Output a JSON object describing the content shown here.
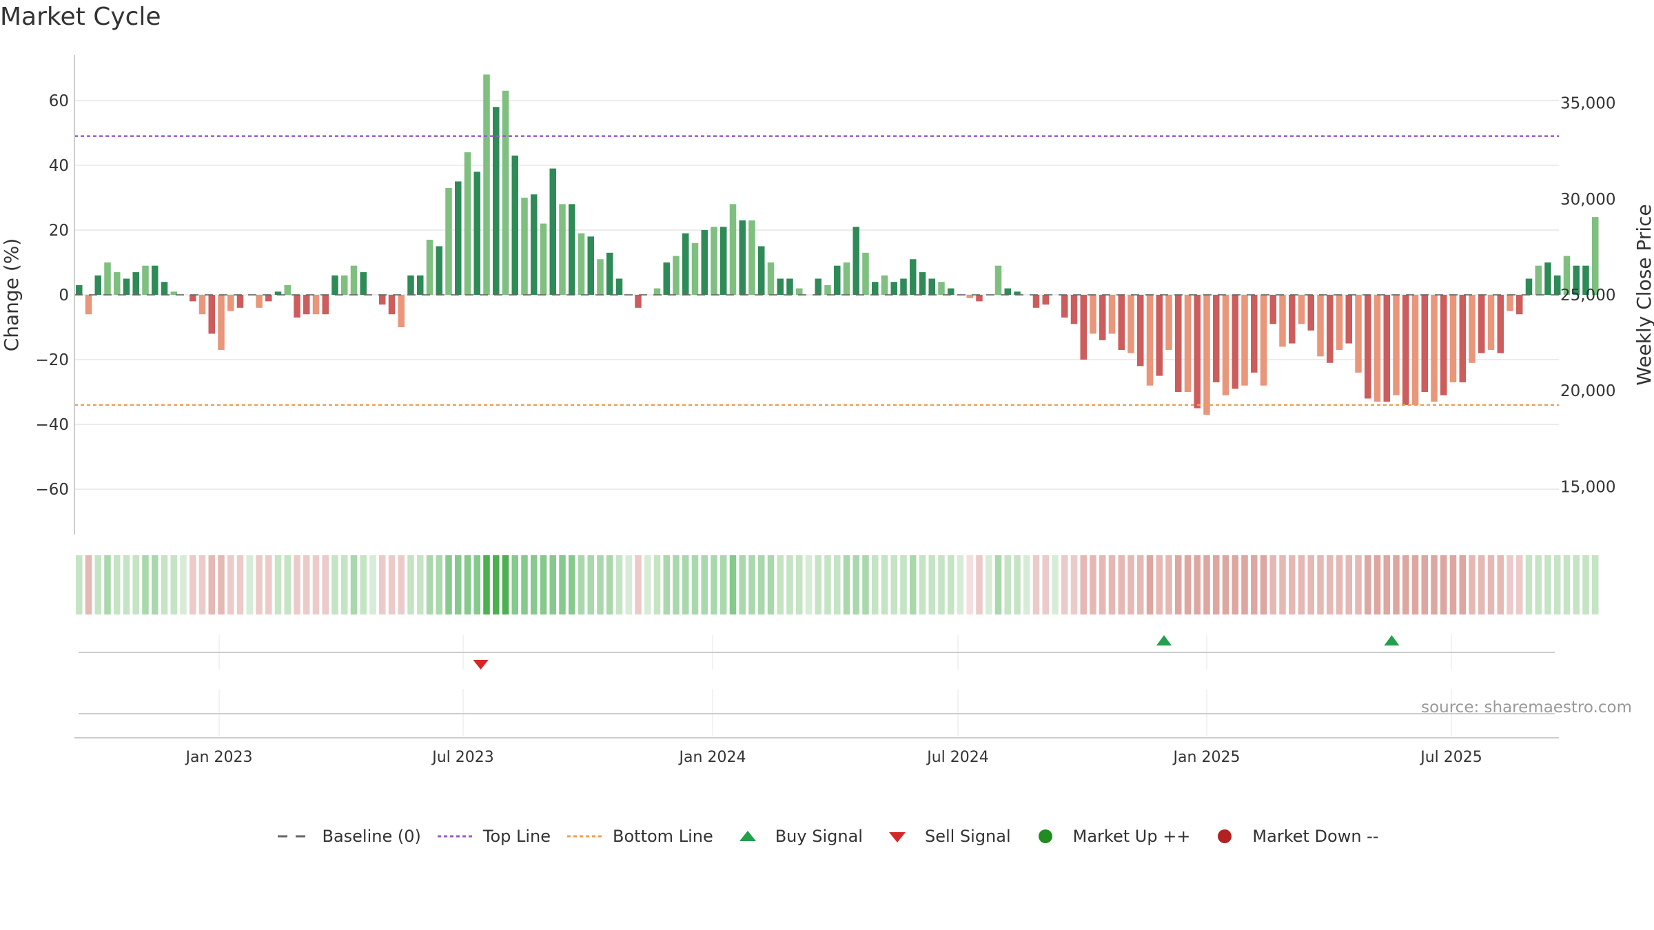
{
  "title": "Market Cycle",
  "source": "source: sharemaestro.com",
  "colors": {
    "pos_dark": "#2e8b57",
    "pos_light": "#7fbf7f",
    "neg_dark": "#cd5c5c",
    "neg_light": "#e9967a",
    "top_line": "#9b59d0",
    "bottom_line": "#f0a050",
    "buy": "#22a04b",
    "sell": "#d62728",
    "market_up": "#228b22",
    "market_down": "#b22222",
    "baseline": "#666666"
  },
  "chart_data": {
    "type": "bar",
    "title": "Market Cycle",
    "ylabel": "Change (%)",
    "y2label": "Weekly Close Price",
    "ylim": [
      -74,
      74
    ],
    "y_ticks": [
      60,
      40,
      20,
      0,
      -20,
      -40,
      -60
    ],
    "y_tick_labels": [
      "60",
      "40",
      "20",
      "0",
      "−20",
      "−40",
      "−60"
    ],
    "y2_ticks": [
      35000,
      30000,
      25000,
      20000,
      15000
    ],
    "y2_tick_labels": [
      "35,000",
      "30,000",
      "25,000",
      "20,000",
      "15,000"
    ],
    "y2lim": [
      12500,
      37500
    ],
    "top_line": 49,
    "bottom_line": -34,
    "x_ticks": [
      "Jan 2023",
      "Jul 2023",
      "Jan 2024",
      "Jul 2024",
      "Jan 2025",
      "Jul 2025"
    ],
    "grid": true,
    "values": [
      3,
      -6,
      6,
      10,
      7,
      5,
      7,
      9,
      9,
      4,
      1,
      0,
      -2,
      -6,
      -12,
      -17,
      -5,
      -4,
      0,
      -4,
      -2,
      1,
      3,
      -7,
      -6,
      -6,
      -6,
      6,
      6,
      9,
      7,
      0,
      -3,
      -6,
      -10,
      6,
      6,
      17,
      15,
      33,
      35,
      44,
      38,
      68,
      58,
      63,
      43,
      30,
      31,
      22,
      39,
      28,
      28,
      19,
      18,
      11,
      13,
      5,
      0,
      -4,
      0,
      2,
      10,
      12,
      19,
      16,
      20,
      21,
      21,
      28,
      23,
      23,
      15,
      10,
      5,
      5,
      2,
      0,
      5,
      3,
      9,
      10,
      21,
      13,
      4,
      6,
      4,
      5,
      11,
      7,
      5,
      4,
      2,
      0,
      -1,
      -2,
      0,
      9,
      2,
      1,
      0,
      -4,
      -3,
      0,
      -7,
      -9,
      -20,
      -12,
      -14,
      -12,
      -17,
      -18,
      -22,
      -28,
      -25,
      -17,
      -30,
      -30,
      -35,
      -37,
      -27,
      -31,
      -29,
      -28,
      -24,
      -28,
      -9,
      -16,
      -15,
      -9,
      -11,
      -19,
      -21,
      -17,
      -15,
      -24,
      -32,
      -33,
      -33,
      -31,
      -34,
      -34,
      -30,
      -33,
      -31,
      -27,
      -27,
      -21,
      -18,
      -17,
      -18,
      -5,
      -6,
      5,
      9,
      10,
      6,
      12,
      9,
      9,
      24
    ],
    "shade": [
      2,
      3,
      2,
      3,
      2,
      2,
      2,
      3,
      3,
      2,
      2,
      1,
      2,
      2,
      3,
      3,
      2,
      2,
      1,
      2,
      2,
      2,
      2,
      2,
      2,
      2,
      2,
      2,
      2,
      3,
      2,
      1,
      2,
      2,
      2,
      2,
      2,
      3,
      3,
      4,
      4,
      4,
      4,
      5,
      5,
      5,
      4,
      4,
      4,
      4,
      4,
      4,
      4,
      3,
      3,
      3,
      3,
      2,
      1,
      2,
      1,
      2,
      3,
      3,
      3,
      3,
      3,
      3,
      3,
      4,
      3,
      3,
      3,
      3,
      2,
      2,
      2,
      1,
      2,
      2,
      2,
      3,
      3,
      3,
      2,
      2,
      2,
      2,
      3,
      2,
      2,
      2,
      2,
      1,
      1,
      2,
      1,
      3,
      2,
      2,
      1,
      2,
      2,
      1,
      2,
      2,
      3,
      3,
      3,
      3,
      3,
      3,
      3,
      4,
      3,
      3,
      4,
      4,
      4,
      4,
      4,
      4,
      4,
      4,
      4,
      4,
      3,
      3,
      3,
      3,
      3,
      3,
      3,
      3,
      3,
      3,
      4,
      4,
      4,
      4,
      4,
      4,
      4,
      4,
      4,
      4,
      4,
      3,
      3,
      3,
      3,
      2,
      2,
      2,
      2,
      2,
      2,
      2,
      2,
      2,
      2
    ],
    "buy_signals": [
      "2024-12-01",
      "2025-05-18"
    ],
    "sell_signals": [
      "2023-07-16"
    ],
    "legend": [
      "Baseline (0)",
      "Top Line",
      "Bottom Line",
      "Buy Signal",
      "Sell Signal",
      "Market Up ++",
      "Market Down --"
    ],
    "legend_position": "bottom-center"
  }
}
